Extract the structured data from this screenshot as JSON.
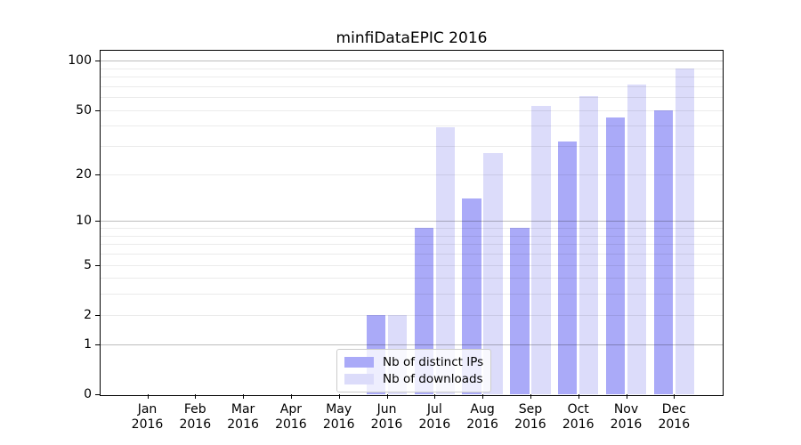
{
  "chart_data": {
    "type": "bar",
    "title": "minfiDataEPIC 2016",
    "months": [
      "Jan",
      "Feb",
      "Mar",
      "Apr",
      "May",
      "Jun",
      "Jul",
      "Aug",
      "Sep",
      "Oct",
      "Nov",
      "Dec"
    ],
    "year": "2016",
    "series": [
      {
        "name": "Nb of distinct IPs",
        "color": "#aaaaf8",
        "values": [
          0,
          0,
          0,
          0,
          0,
          2,
          9,
          14,
          9,
          32,
          45,
          50
        ]
      },
      {
        "name": "Nb of downloads",
        "color": "#dcdcfa",
        "values": [
          0,
          0,
          0,
          0,
          0,
          2,
          39,
          27,
          53,
          61,
          72,
          90
        ]
      }
    ],
    "yscale": "log1p",
    "ylim": [
      0,
      115
    ],
    "y_tick_values": [
      0,
      1,
      2,
      5,
      10,
      20,
      50,
      100
    ],
    "y_tick_labels": [
      "0",
      "1",
      "2",
      "5",
      "10",
      "20",
      "50",
      "100"
    ],
    "grid_decade_lines": [
      1,
      10,
      100
    ],
    "grid_minor_lines": [
      2,
      3,
      4,
      5,
      6,
      7,
      8,
      9,
      20,
      30,
      40,
      50,
      60,
      70,
      80,
      90
    ],
    "legend_position": "lower center",
    "grid": true,
    "colors": {
      "decade_grid": "rgba(0,0,0,0.26)",
      "minor_grid": "rgba(0,0,0,0.08)",
      "axis": "#000000",
      "background": "#ffffff",
      "legend_border": "#cccccc"
    }
  }
}
